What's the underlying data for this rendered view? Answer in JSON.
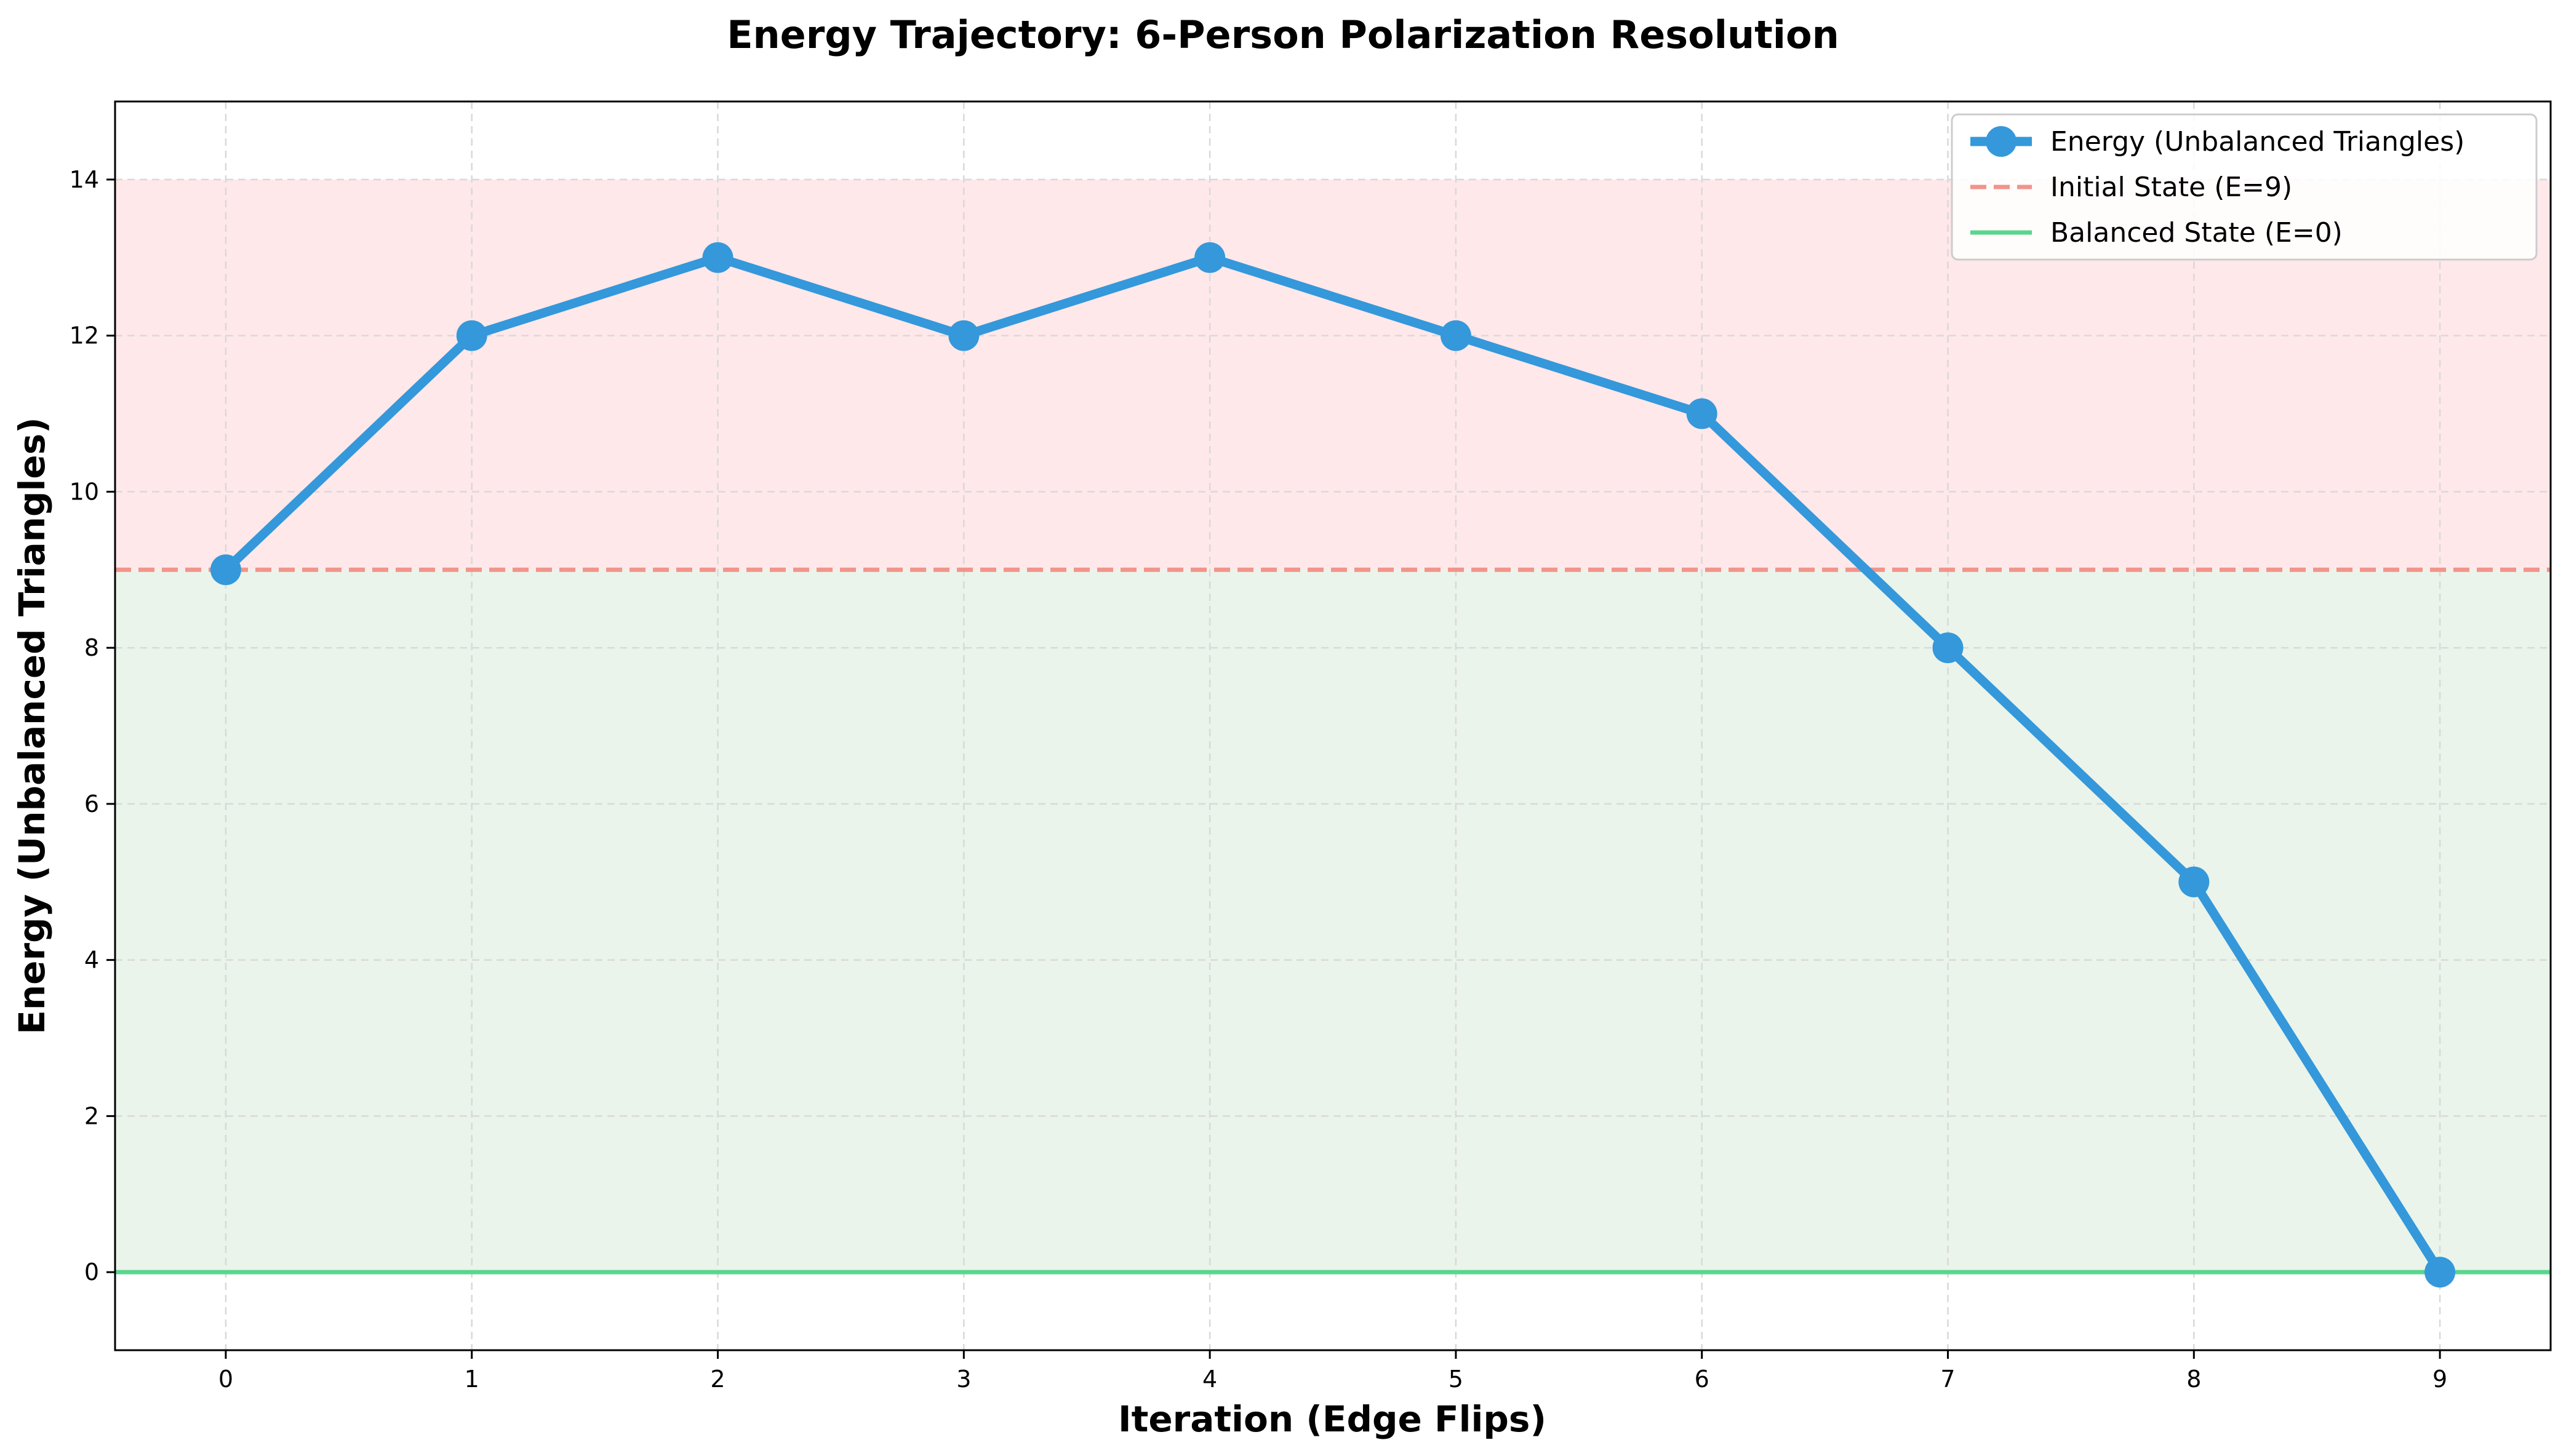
{
  "chart_data": {
    "type": "line",
    "title": "Energy Trajectory: 6-Person Polarization Resolution",
    "xlabel": "Iteration (Edge Flips)",
    "ylabel": "Energy (Unbalanced Triangles)",
    "xlim": [
      -0.45,
      9.45
    ],
    "ylim": [
      -1,
      15
    ],
    "xticks": [
      0,
      1,
      2,
      3,
      4,
      5,
      6,
      7,
      8,
      9
    ],
    "xtick_labels": [
      "0",
      "1",
      "2",
      "3",
      "4",
      "5",
      "6",
      "7",
      "8",
      "9"
    ],
    "yticks": [
      0,
      2,
      4,
      6,
      8,
      10,
      12,
      14
    ],
    "ytick_labels": [
      "0",
      "2",
      "4",
      "6",
      "8",
      "10",
      "12",
      "14"
    ],
    "grid": true,
    "legend_position": "top-right",
    "regions": [
      {
        "y0": 9,
        "y1": 14,
        "color": "#ffe8ea"
      },
      {
        "y0": 0,
        "y1": 9,
        "color": "#eaf4ea"
      }
    ],
    "series": [
      {
        "name": "Energy (Unbalanced Triangles)",
        "x": [
          0,
          1,
          2,
          3,
          4,
          5,
          6,
          7,
          8,
          9
        ],
        "y": [
          9,
          12,
          13,
          12,
          13,
          12,
          11,
          8,
          5,
          0
        ],
        "color": "#3498db",
        "style": "solid-marker"
      }
    ],
    "reference_lines": [
      {
        "name": "Initial State (E=9)",
        "y": 9,
        "color": "#f1948a",
        "style": "dashed"
      },
      {
        "name": "Balanced State (E=0)",
        "y": 0,
        "color": "#58d68d",
        "style": "solid"
      }
    ]
  }
}
